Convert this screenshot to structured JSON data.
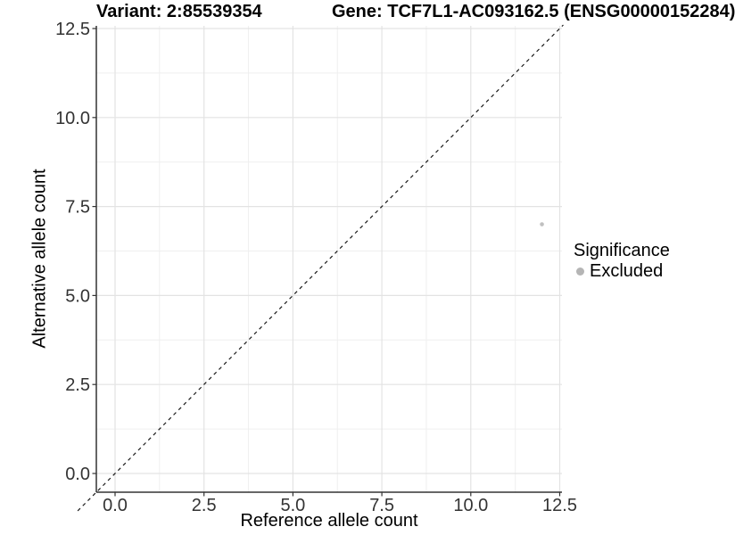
{
  "chart_data": {
    "type": "scatter",
    "title_left": "Variant: 2:85539354",
    "title_right": "Gene: TCF7L1-AC093162.5 (ENSG00000152284)",
    "xlabel": "Reference allele count",
    "ylabel": "Alternative allele count",
    "xlim": [
      -0.55,
      12.6
    ],
    "ylim": [
      -0.55,
      12.6
    ],
    "x_ticks": [
      0,
      2.5,
      5,
      7.5,
      10,
      12.5
    ],
    "x_tick_labels": [
      "0.0",
      "2.5",
      "5.0",
      "7.5",
      "10.0",
      "12.5"
    ],
    "x_minor_ticks": [
      1.25,
      3.75,
      6.25,
      8.75,
      11.25
    ],
    "y_ticks": [
      0,
      2.5,
      5,
      7.5,
      10,
      12.5
    ],
    "y_tick_labels": [
      "0.0",
      "2.5",
      "5.0",
      "7.5",
      "10.0",
      "12.5"
    ],
    "y_minor_ticks": [
      1.25,
      3.75,
      6.25,
      8.75,
      11.25
    ],
    "grid": true,
    "points": [
      {
        "x": 12,
        "y": 7,
        "series": "Excluded"
      }
    ],
    "identity_line": {
      "slope": 1,
      "intercept": 0,
      "style": "dashed",
      "range": [
        -1.05,
        12.6
      ]
    },
    "legend": {
      "title": "Significance",
      "position": "right",
      "items": [
        {
          "label": "Excluded",
          "marker": "circle",
          "color": "#b5b5b5"
        }
      ]
    },
    "colors": {
      "point": "#c0c0c0",
      "legend_marker": "#b5b5b5",
      "grid_major": "#e3e3e3",
      "grid_minor": "#efefef",
      "axis": "#333333",
      "tick_label": "#333333",
      "identity_line": "#1a1a1a",
      "background": "#ffffff"
    }
  }
}
